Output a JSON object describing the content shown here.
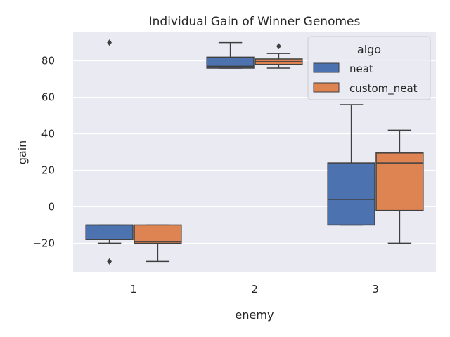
{
  "chart_data": {
    "type": "box",
    "title": "Individual Gain of Winner Genomes",
    "xlabel": "enemy",
    "ylabel": "gain",
    "categories": [
      "1",
      "2",
      "3"
    ],
    "yticks": [
      "−20",
      "0",
      "20",
      "40",
      "60",
      "80"
    ],
    "ylim": [
      -36,
      96
    ],
    "grid": true,
    "legend": {
      "title": "algo",
      "placement": "top-right"
    },
    "series": [
      {
        "name": "neat",
        "color": "#4c72b0",
        "boxes": [
          {
            "whisker_low": -20,
            "q1": -18,
            "median": -10,
            "q3": -10,
            "whisker_high": -10,
            "outliers": [
              90,
              -30
            ]
          },
          {
            "whisker_low": 76,
            "q1": 76,
            "median": 77,
            "q3": 82,
            "whisker_high": 90,
            "outliers": []
          },
          {
            "whisker_low": -10,
            "q1": -10,
            "median": 4,
            "q3": 24,
            "whisker_high": 56,
            "outliers": []
          }
        ]
      },
      {
        "name": "custom_neat",
        "color": "#dd8452",
        "boxes": [
          {
            "whisker_low": -30,
            "q1": -20,
            "median": -19,
            "q3": -10,
            "whisker_high": -10,
            "outliers": []
          },
          {
            "whisker_low": 76,
            "q1": 78,
            "median": 79.5,
            "q3": 81,
            "whisker_high": 84,
            "outliers": [
              88
            ]
          },
          {
            "whisker_low": -20,
            "q1": -2,
            "median": 24,
            "q3": 29.5,
            "whisker_high": 42,
            "outliers": []
          }
        ]
      }
    ]
  }
}
